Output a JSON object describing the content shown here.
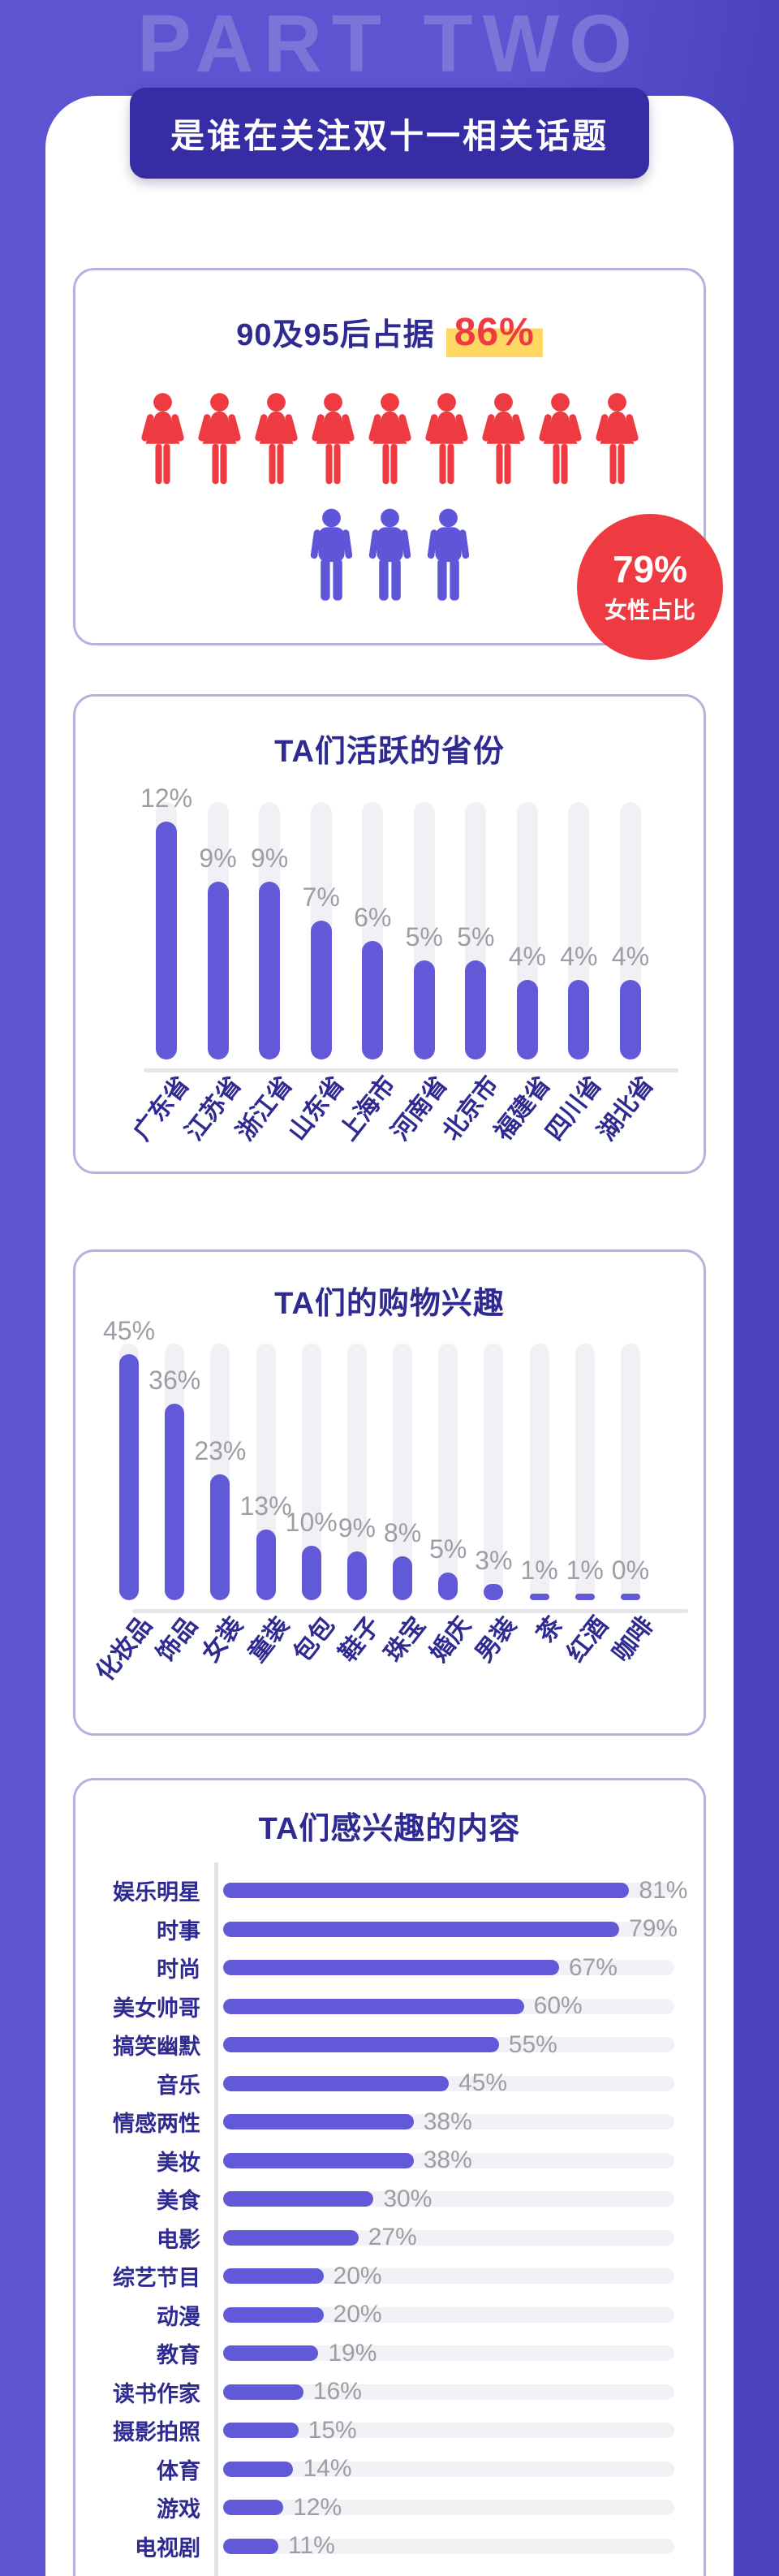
{
  "part_label": "PART TWO",
  "banner": {
    "title": "是谁在关注双十一相关话题"
  },
  "colors": {
    "background_left": "#5C54D0",
    "background_right": "#4C43C1",
    "banner_bg": "#362CA3",
    "part_label_text": "#7C75D8",
    "card_border": "#B7B1DF",
    "title_navy": "#2E2A92",
    "bar_purple": "#6159D8",
    "track_gray": "#F1F0F4",
    "baseline_gray": "#E6E5EA",
    "value_gray": "#9E9DA5",
    "female_red": "#EE3A41",
    "male_purple": "#5E55D8",
    "badge_red": "#EE3A41",
    "highlight_yellow": "#FFD763"
  },
  "demographics": {
    "title_prefix": "90及95后占据",
    "highlight_value": "86%",
    "female_icon_count": 9,
    "male_icon_count": 3,
    "badge": {
      "value": "79%",
      "label": "女性占比"
    }
  },
  "chart_data": [
    {
      "type": "bar",
      "orientation": "vertical",
      "title": "TA们活跃的省份",
      "unit": "%",
      "categories": [
        "广东省",
        "江苏省",
        "浙江省",
        "山东省",
        "上海市",
        "河南省",
        "北京市",
        "福建省",
        "四川省",
        "湖北省"
      ],
      "values": [
        12,
        9,
        9,
        7,
        6,
        5,
        5,
        4,
        4,
        4
      ],
      "ylim": [
        0,
        13
      ],
      "grid": false,
      "value_labels": "above-bar",
      "category_labels": "rotated"
    },
    {
      "type": "bar",
      "orientation": "vertical",
      "title": "TA们的购物兴趣",
      "unit": "%",
      "categories": [
        "化妆品",
        "饰品",
        "女装",
        "童装",
        "包包",
        "鞋子",
        "珠宝",
        "婚庆",
        "男装",
        "茶",
        "红酒",
        "咖啡"
      ],
      "values": [
        45,
        36,
        23,
        13,
        10,
        9,
        8,
        5,
        3,
        1,
        1,
        0
      ],
      "ylim": [
        0,
        47
      ],
      "grid": false,
      "value_labels": "above-bar",
      "category_labels": "rotated"
    },
    {
      "type": "bar",
      "orientation": "horizontal",
      "title": "TA们感兴趣的内容",
      "unit": "%",
      "categories": [
        "娱乐明星",
        "时事",
        "时尚",
        "美女帅哥",
        "搞笑幽默",
        "音乐",
        "情感两性",
        "美妆",
        "美食",
        "电影",
        "综艺节目",
        "动漫",
        "教育",
        "读书作家",
        "摄影拍照",
        "体育",
        "游戏",
        "电视剧"
      ],
      "values": [
        81,
        79,
        67,
        60,
        55,
        45,
        38,
        38,
        30,
        27,
        20,
        20,
        19,
        16,
        15,
        14,
        12,
        11
      ],
      "xlim": [
        0,
        90
      ],
      "grid": false,
      "value_labels": "right-of-bar"
    }
  ]
}
